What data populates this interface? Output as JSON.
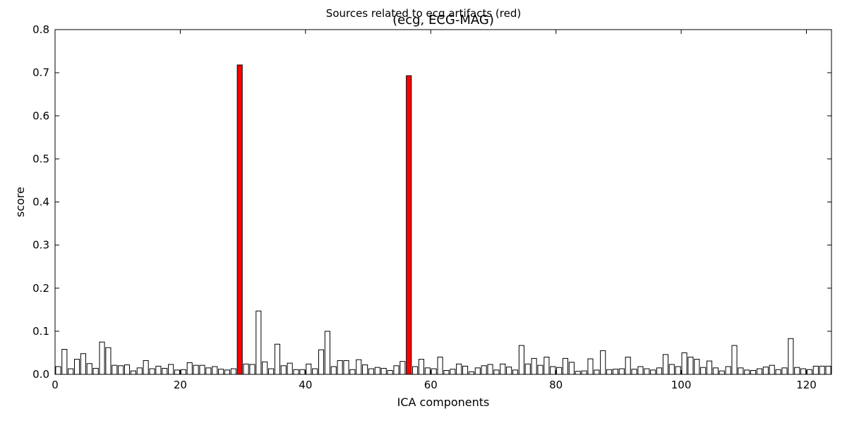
{
  "figure": {
    "suptitle": "Sources related to ecg artifacts (red)"
  },
  "chart_data": {
    "type": "bar",
    "title": "(ecg, ECG-MAG)",
    "xlabel": "ICA components",
    "ylabel": "score",
    "xlim": [
      0,
      124
    ],
    "ylim": [
      0,
      0.8
    ],
    "xticks": [
      0,
      20,
      40,
      60,
      80,
      100,
      120
    ],
    "yticks": [
      0.0,
      0.1,
      0.2,
      0.3,
      0.4,
      0.5,
      0.6,
      0.7,
      0.8
    ],
    "grid": false,
    "bar_color": "#ffffff",
    "highlight_color": "#ff0000",
    "edge_color": "#000000",
    "highlighted_components": [
      29,
      56
    ],
    "components": [
      0,
      1,
      2,
      3,
      4,
      5,
      6,
      7,
      8,
      9,
      10,
      11,
      12,
      13,
      14,
      15,
      16,
      17,
      18,
      19,
      20,
      21,
      22,
      23,
      24,
      25,
      26,
      27,
      28,
      29,
      30,
      31,
      32,
      33,
      34,
      35,
      36,
      37,
      38,
      39,
      40,
      41,
      42,
      43,
      44,
      45,
      46,
      47,
      48,
      49,
      50,
      51,
      52,
      53,
      54,
      55,
      56,
      57,
      58,
      59,
      60,
      61,
      62,
      63,
      64,
      65,
      66,
      67,
      68,
      69,
      70,
      71,
      72,
      73,
      74,
      75,
      76,
      77,
      78,
      79,
      80,
      81,
      82,
      83,
      84,
      85,
      86,
      87,
      88,
      89,
      90,
      91,
      92,
      93,
      94,
      95,
      96,
      97,
      98,
      99,
      100,
      101,
      102,
      103,
      104,
      105,
      106,
      107,
      108,
      109,
      110,
      111,
      112,
      113,
      114,
      115,
      116,
      117,
      118,
      119,
      120,
      121,
      122,
      123
    ],
    "values": [
      0.018,
      0.058,
      0.013,
      0.035,
      0.048,
      0.025,
      0.014,
      0.075,
      0.062,
      0.021,
      0.02,
      0.022,
      0.008,
      0.015,
      0.032,
      0.013,
      0.019,
      0.014,
      0.023,
      0.01,
      0.011,
      0.027,
      0.021,
      0.021,
      0.015,
      0.018,
      0.012,
      0.01,
      0.013,
      0.718,
      0.024,
      0.023,
      0.147,
      0.029,
      0.013,
      0.07,
      0.02,
      0.026,
      0.011,
      0.011,
      0.024,
      0.013,
      0.057,
      0.1,
      0.018,
      0.032,
      0.032,
      0.011,
      0.034,
      0.022,
      0.013,
      0.016,
      0.014,
      0.009,
      0.02,
      0.03,
      0.693,
      0.018,
      0.035,
      0.015,
      0.013,
      0.04,
      0.009,
      0.012,
      0.024,
      0.019,
      0.006,
      0.015,
      0.02,
      0.023,
      0.01,
      0.024,
      0.017,
      0.01,
      0.067,
      0.024,
      0.037,
      0.021,
      0.04,
      0.018,
      0.016,
      0.037,
      0.028,
      0.007,
      0.008,
      0.036,
      0.01,
      0.055,
      0.011,
      0.012,
      0.013,
      0.04,
      0.012,
      0.018,
      0.013,
      0.01,
      0.015,
      0.046,
      0.023,
      0.018,
      0.05,
      0.04,
      0.035,
      0.016,
      0.031,
      0.015,
      0.008,
      0.018,
      0.067,
      0.015,
      0.01,
      0.009,
      0.013,
      0.017,
      0.021,
      0.011,
      0.015,
      0.083,
      0.016,
      0.013,
      0.011,
      0.019,
      0.019,
      0.019
    ]
  }
}
